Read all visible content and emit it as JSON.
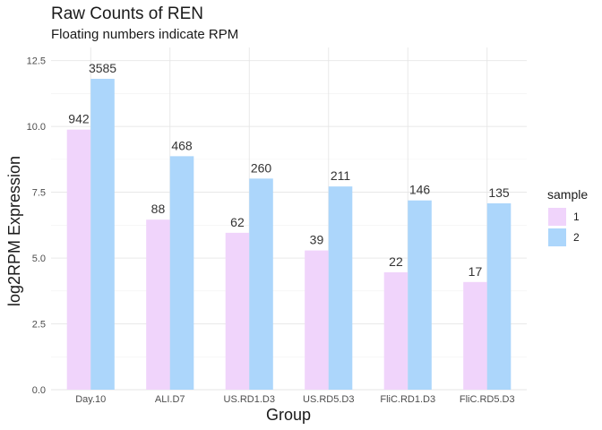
{
  "chart_data": {
    "type": "bar",
    "title": "Raw Counts of REN",
    "subtitle": "Floating numbers indicate RPM",
    "xlabel": "Group",
    "ylabel": "log2RPM Expression",
    "categories": [
      "Day.10",
      "ALI.D7",
      "US.RD1.D3",
      "US.RD5.D3",
      "FliC.RD1.D3",
      "FliC.RD5.D3"
    ],
    "series": [
      {
        "name": "1",
        "color": "#f0d4fb",
        "values": [
          9.88,
          6.46,
          5.96,
          5.29,
          4.46,
          4.09
        ],
        "labels": [
          "942",
          "88",
          "62",
          "39",
          "22",
          "17"
        ]
      },
      {
        "name": "2",
        "color": "#acd6fb",
        "values": [
          11.81,
          8.87,
          8.02,
          7.72,
          7.19,
          7.08
        ],
        "labels": [
          "3585",
          "468",
          "260",
          "211",
          "146",
          "135"
        ]
      }
    ],
    "ylim": [
      0,
      13
    ],
    "yticks": [
      "0.0",
      "2.5",
      "5.0",
      "7.5",
      "10.0",
      "12.5"
    ],
    "ytick_values": [
      0,
      2.5,
      5,
      7.5,
      10,
      12.5
    ],
    "grid": true,
    "legend": {
      "title": "sample",
      "position": "right"
    }
  }
}
